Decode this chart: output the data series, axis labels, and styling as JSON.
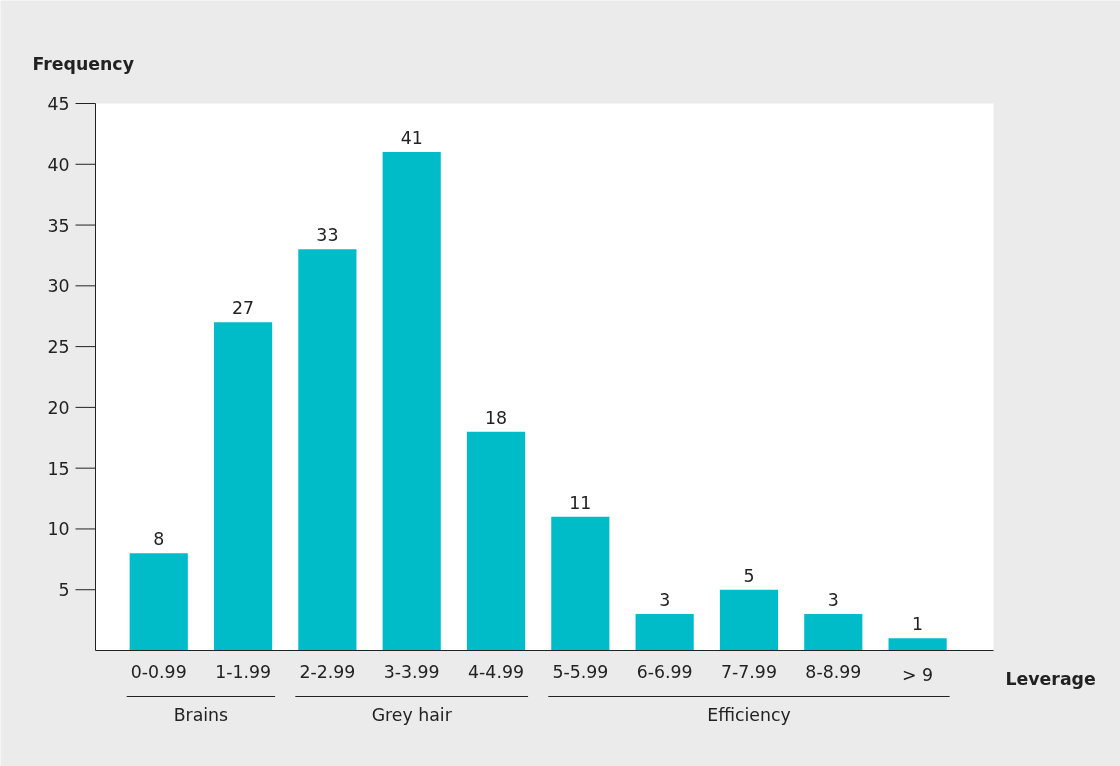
{
  "chart_data": {
    "type": "bar",
    "xlabel": "Leverage",
    "ylabel": "Frequency",
    "categories": [
      "0-0.99",
      "1-1.99",
      "2-2.99",
      "3-3.99",
      "4-4.99",
      "5-5.99",
      "6-6.99",
      "7-7.99",
      "8-8.99",
      "> 9"
    ],
    "values": [
      8,
      27,
      33,
      41,
      18,
      11,
      3,
      5,
      3,
      1
    ],
    "color": "#00bcc9",
    "ylim": [
      0,
      45
    ],
    "yticks": [
      5,
      10,
      15,
      20,
      25,
      30,
      35,
      40,
      45
    ],
    "grid": false,
    "data_labels": true,
    "annotations": [
      "Brains",
      "Grey hair",
      "Efficiency"
    ]
  }
}
